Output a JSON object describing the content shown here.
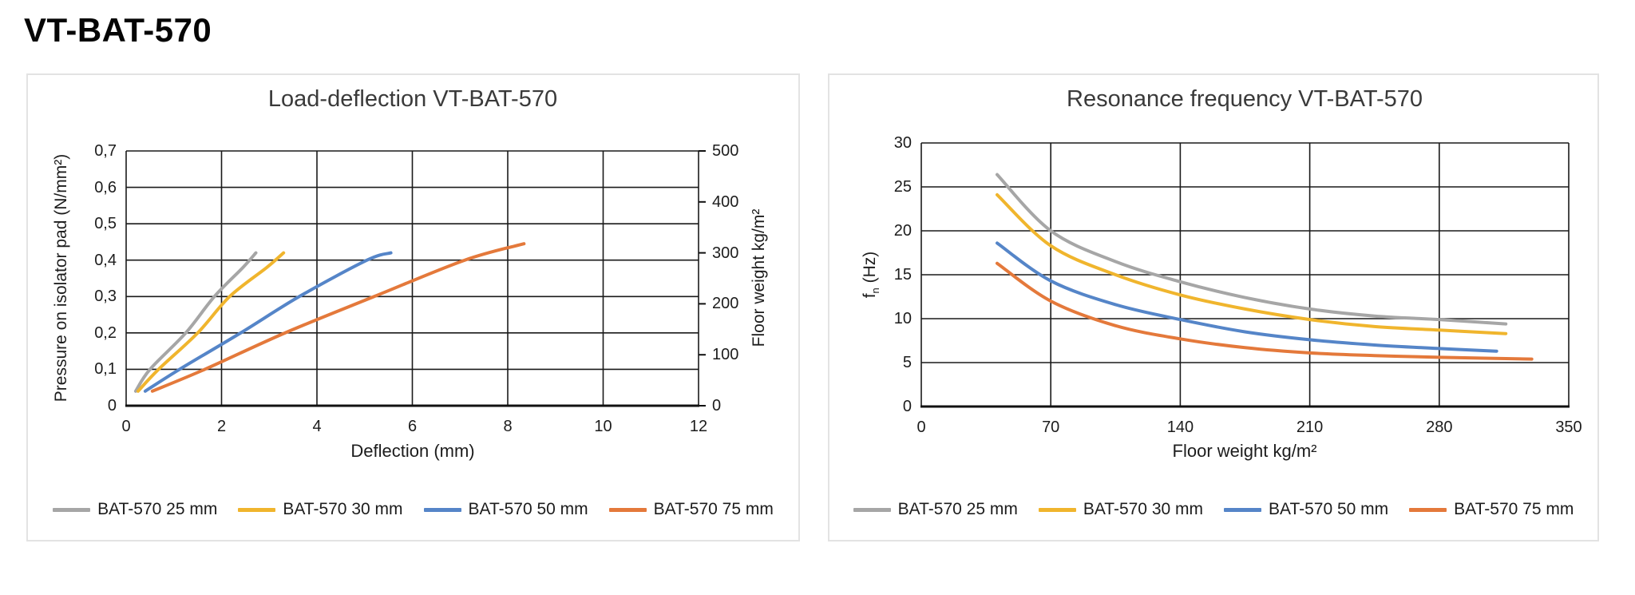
{
  "page_title": "VT-BAT-570",
  "chart_data": [
    {
      "type": "line",
      "title": "Load-deflection VT-BAT-570",
      "xlabel": "Deflection (mm)",
      "ylabel": "Pressure on isolator pad (N/mm²)",
      "y2label": "Floor weight kg/m²",
      "xlim": [
        0,
        12
      ],
      "ylim": [
        0,
        0.7
      ],
      "y2lim": [
        0,
        500
      ],
      "x_ticks": [
        "0",
        "2",
        "4",
        "6",
        "8",
        "10",
        "12"
      ],
      "y_ticks": [
        "0",
        "0,1",
        "0,2",
        "0,3",
        "0,4",
        "0,5",
        "0,6",
        "0,7"
      ],
      "y2_ticks": [
        "0",
        "100",
        "200",
        "300",
        "400",
        "500"
      ],
      "grid": true,
      "legend_position": "bottom",
      "series": [
        {
          "name": "BAT-570 25 mm",
          "color": "#A6A6A6",
          "points": [
            [
              0.2,
              0.04
            ],
            [
              0.5,
              0.1
            ],
            [
              1.25,
              0.2
            ],
            [
              1.85,
              0.3
            ],
            [
              2.45,
              0.38
            ],
            [
              2.72,
              0.42
            ]
          ]
        },
        {
          "name": "BAT-570 30 mm",
          "color": "#F0B52D",
          "points": [
            [
              0.25,
              0.04
            ],
            [
              0.68,
              0.1
            ],
            [
              1.5,
              0.2
            ],
            [
              2.17,
              0.3
            ],
            [
              2.95,
              0.38
            ],
            [
              3.3,
              0.42
            ]
          ]
        },
        {
          "name": "BAT-570 50 mm",
          "color": "#5585C8",
          "points": [
            [
              0.4,
              0.04
            ],
            [
              1.12,
              0.1
            ],
            [
              2.4,
              0.2
            ],
            [
              3.63,
              0.3
            ],
            [
              5.05,
              0.4
            ],
            [
              5.55,
              0.42
            ]
          ]
        },
        {
          "name": "BAT-570 75 mm",
          "color": "#E4793B",
          "points": [
            [
              0.55,
              0.04
            ],
            [
              1.65,
              0.1
            ],
            [
              3.33,
              0.2
            ],
            [
              5.2,
              0.3
            ],
            [
              7.1,
              0.4
            ],
            [
              8.34,
              0.445
            ]
          ]
        }
      ]
    },
    {
      "type": "line",
      "title": "Resonance frequency VT-BAT-570",
      "xlabel": "Floor weight kg/m²",
      "ylabel_f": "f",
      "ylabel_sub": "n",
      "ylabel_rest": " (Hz)",
      "xlim": [
        0,
        350
      ],
      "ylim": [
        0,
        30
      ],
      "x_ticks": [
        "0",
        "70",
        "140",
        "210",
        "280",
        "350"
      ],
      "y_ticks": [
        "0",
        "5",
        "10",
        "15",
        "20",
        "25",
        "30"
      ],
      "grid": true,
      "legend_position": "bottom",
      "series": [
        {
          "name": "BAT-570 25 mm",
          "color": "#A6A6A6",
          "points": [
            [
              41,
              26.4
            ],
            [
              70,
              20.0
            ],
            [
              105,
              16.5
            ],
            [
              140,
              14.2
            ],
            [
              175,
              12.4
            ],
            [
              210,
              11.1
            ],
            [
              245,
              10.3
            ],
            [
              280,
              9.9
            ],
            [
              316,
              9.4
            ]
          ]
        },
        {
          "name": "BAT-570 30 mm",
          "color": "#F0B52D",
          "points": [
            [
              41,
              24.1
            ],
            [
              70,
              18.3
            ],
            [
              105,
              15.0
            ],
            [
              140,
              12.7
            ],
            [
              175,
              11.1
            ],
            [
              210,
              9.9
            ],
            [
              245,
              9.1
            ],
            [
              280,
              8.7
            ],
            [
              316,
              8.3
            ]
          ]
        },
        {
          "name": "BAT-570 50 mm",
          "color": "#5585C8",
          "points": [
            [
              41,
              18.6
            ],
            [
              70,
              14.3
            ],
            [
              105,
              11.6
            ],
            [
              140,
              9.9
            ],
            [
              175,
              8.5
            ],
            [
              210,
              7.6
            ],
            [
              245,
              7.0
            ],
            [
              280,
              6.6
            ],
            [
              311,
              6.3
            ]
          ]
        },
        {
          "name": "BAT-570 75 mm",
          "color": "#E4793B",
          "points": [
            [
              41,
              16.3
            ],
            [
              70,
              12.0
            ],
            [
              105,
              9.2
            ],
            [
              140,
              7.7
            ],
            [
              175,
              6.7
            ],
            [
              210,
              6.1
            ],
            [
              245,
              5.8
            ],
            [
              280,
              5.6
            ],
            [
              330,
              5.4
            ]
          ]
        }
      ]
    }
  ],
  "style": {
    "grid_color": "#1a1a1a",
    "axis_color": "#111111"
  }
}
